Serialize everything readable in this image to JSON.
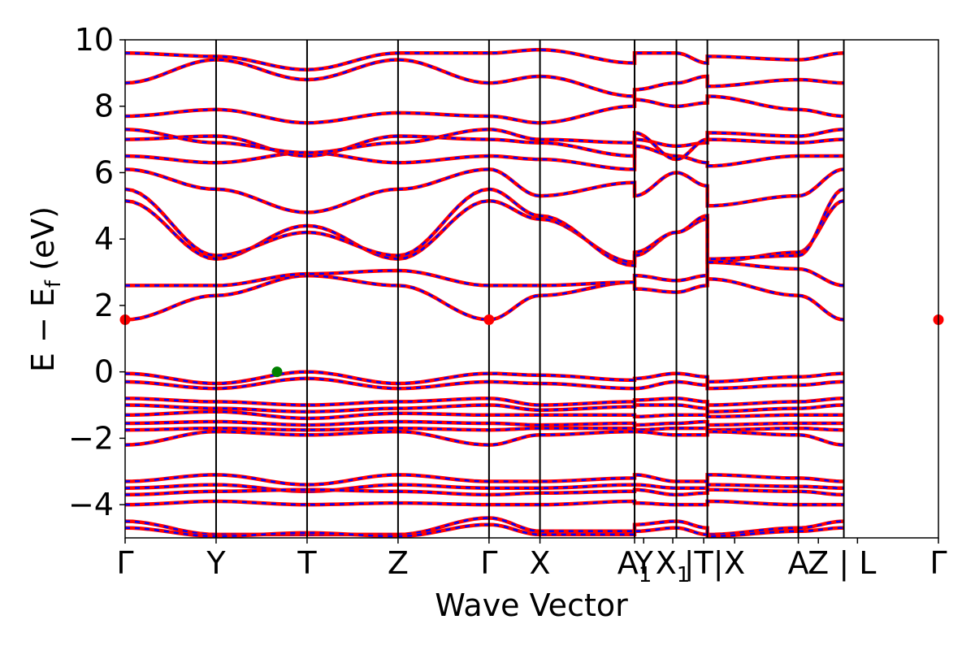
{
  "chart_data": {
    "type": "line",
    "title": "",
    "xlabel": "Wave Vector",
    "ylabel": "E − E",
    "ylabel_subscript": "f",
    "ylabel_unit": " (eV)",
    "ylim": [
      -5,
      10
    ],
    "yticks": [
      {
        "value": -4,
        "label": "−4"
      },
      {
        "value": -2,
        "label": "−2"
      },
      {
        "value": 0,
        "label": "0"
      },
      {
        "value": 2,
        "label": "2"
      },
      {
        "value": 4,
        "label": "4"
      },
      {
        "value": 6,
        "label": "6"
      },
      {
        "value": 8,
        "label": "8"
      },
      {
        "value": 10,
        "label": "10"
      }
    ],
    "x_path_length": 8.94,
    "kpoints": [
      {
        "label": "Γ",
        "x": 0
      },
      {
        "label": "Y",
        "x": 1.0
      },
      {
        "label": "T",
        "x": 2.0
      },
      {
        "label": "Z",
        "x": 3.0
      },
      {
        "label": "Γ",
        "x": 4.0
      },
      {
        "label": "X",
        "x": 4.56
      },
      {
        "label": "A",
        "x": 5.6,
        "sub": "1"
      },
      {
        "label": "Y",
        "x": 5.6
      },
      {
        "label": "X",
        "x": 6.06,
        "sub": "1"
      },
      {
        "label": "| T",
        "x": 6.4
      },
      {
        "label": "| X",
        "x": 6.4
      },
      {
        "label": "A",
        "x": 7.4
      },
      {
        "label": "Z | L",
        "x": 7.9
      },
      {
        "label": "Γ",
        "x": 8.94
      }
    ],
    "kpoint_display": [
      {
        "text": "Γ",
        "x": 0
      },
      {
        "text": "Y",
        "x": 1.0
      },
      {
        "text": "T",
        "x": 2.0
      },
      {
        "text": "Z",
        "x": 3.0
      },
      {
        "text": "Γ",
        "x": 4.0
      },
      {
        "text": "X",
        "x": 4.56
      },
      {
        "text": "A",
        "sub": "1",
        "x": 5.6
      },
      {
        "text": "Y",
        "x": 5.7
      },
      {
        "text": "X",
        "sub": "1",
        "x": 6.02
      },
      {
        "text": "|T|",
        "x": 6.36
      },
      {
        "text": "X",
        "x": 6.7
      },
      {
        "text": "A",
        "x": 7.4
      },
      {
        "text": "Z",
        "x": 7.62
      },
      {
        "text": "| L",
        "x": 8.05
      },
      {
        "text": "Γ",
        "x": 8.94
      }
    ],
    "band_colors": {
      "spin_up": "#ff0000",
      "spin_down": "#0000ff"
    },
    "cbm_points": [
      {
        "x": 0,
        "y": 1.57
      },
      {
        "x": 4.0,
        "y": 1.57
      },
      {
        "x": 8.94,
        "y": 1.57
      }
    ],
    "vbm_point": {
      "x": 1.67,
      "y": 0.0
    },
    "cbm_color": "#ff0000",
    "vbm_color": "#008000",
    "bands": [
      {
        "name": "c1",
        "y": [
          1.57,
          2.3,
          2.9,
          2.6,
          1.57,
          2.3,
          2.7,
          2.5,
          2.4,
          2.6,
          2.8,
          2.3,
          1.57
        ]
      },
      {
        "name": "c2",
        "y": [
          2.6,
          2.6,
          2.95,
          3.05,
          2.6,
          2.6,
          2.7,
          2.9,
          2.75,
          2.9,
          3.3,
          3.1,
          2.6
        ]
      },
      {
        "name": "c3",
        "y": [
          5.15,
          3.4,
          4.4,
          3.4,
          5.15,
          4.6,
          3.3,
          3.5,
          4.2,
          4.6,
          3.3,
          3.6,
          5.15
        ]
      },
      {
        "name": "c4",
        "y": [
          5.5,
          3.5,
          4.2,
          3.5,
          5.5,
          4.7,
          3.2,
          3.6,
          4.2,
          4.7,
          3.4,
          3.5,
          5.5
        ]
      },
      {
        "name": "c5",
        "y": [
          6.1,
          5.5,
          4.8,
          5.5,
          6.1,
          5.3,
          5.7,
          5.3,
          6.0,
          5.6,
          5.0,
          5.3,
          6.1
        ]
      },
      {
        "name": "c6",
        "y": [
          6.5,
          6.3,
          6.6,
          6.3,
          6.5,
          6.4,
          6.1,
          6.8,
          6.5,
          6.3,
          6.2,
          6.5,
          6.5
        ]
      },
      {
        "name": "c7",
        "y": [
          7.0,
          7.1,
          6.5,
          7.1,
          7.0,
          6.9,
          6.5,
          7.0,
          6.8,
          6.9,
          7.0,
          6.9,
          7.0
        ]
      },
      {
        "name": "c8",
        "y": [
          7.3,
          6.9,
          6.6,
          6.9,
          7.3,
          7.0,
          6.9,
          7.2,
          6.4,
          7.0,
          7.2,
          7.1,
          7.3
        ]
      },
      {
        "name": "c9",
        "y": [
          7.7,
          7.9,
          7.5,
          7.8,
          7.7,
          7.5,
          8.0,
          8.2,
          8.0,
          8.1,
          8.3,
          7.9,
          7.7
        ]
      },
      {
        "name": "c10",
        "y": [
          8.7,
          9.4,
          8.8,
          9.4,
          8.7,
          8.9,
          8.3,
          8.5,
          8.7,
          8.9,
          8.6,
          8.8,
          8.7
        ]
      },
      {
        "name": "c11",
        "y": [
          9.6,
          9.5,
          9.1,
          9.6,
          9.6,
          9.7,
          9.3,
          9.6,
          9.6,
          9.3,
          9.5,
          9.4,
          9.6
        ]
      },
      {
        "name": "v1",
        "y": [
          -0.05,
          -0.35,
          0.0,
          -0.35,
          -0.05,
          -0.1,
          -0.25,
          -0.2,
          -0.05,
          -0.15,
          -0.3,
          -0.15,
          -0.05
        ]
      },
      {
        "name": "v2",
        "y": [
          -0.3,
          -0.5,
          -0.2,
          -0.5,
          -0.3,
          -0.35,
          -0.5,
          -0.5,
          -0.3,
          -0.4,
          -0.5,
          -0.4,
          -0.3
        ]
      },
      {
        "name": "v3",
        "y": [
          -0.8,
          -0.9,
          -1.0,
          -0.9,
          -0.8,
          -1.0,
          -0.9,
          -0.85,
          -0.8,
          -0.9,
          -1.0,
          -0.9,
          -0.8
        ]
      },
      {
        "name": "v4",
        "y": [
          -1.0,
          -1.1,
          -1.2,
          -1.1,
          -1.0,
          -1.15,
          -1.05,
          -1.0,
          -1.0,
          -1.1,
          -1.2,
          -1.1,
          -1.0
        ]
      },
      {
        "name": "v5",
        "y": [
          -1.3,
          -1.2,
          -1.4,
          -1.25,
          -1.3,
          -1.3,
          -1.3,
          -1.35,
          -1.3,
          -1.3,
          -1.35,
          -1.3,
          -1.3
        ]
      },
      {
        "name": "v6",
        "y": [
          -1.55,
          -1.5,
          -1.6,
          -1.5,
          -1.55,
          -1.6,
          -1.55,
          -1.6,
          -1.55,
          -1.5,
          -1.6,
          -1.55,
          -1.55
        ]
      },
      {
        "name": "v7",
        "y": [
          -1.75,
          -1.7,
          -1.75,
          -1.7,
          -1.75,
          -1.7,
          -1.7,
          -1.75,
          -1.7,
          -1.7,
          -1.75,
          -1.7,
          -1.75
        ]
      },
      {
        "name": "v8",
        "y": [
          -2.2,
          -1.8,
          -1.9,
          -1.8,
          -2.2,
          -1.9,
          -1.8,
          -1.8,
          -1.9,
          -1.9,
          -1.8,
          -1.9,
          -2.2
        ]
      },
      {
        "name": "v9",
        "y": [
          -3.3,
          -3.1,
          -3.4,
          -3.1,
          -3.3,
          -3.3,
          -3.2,
          -3.1,
          -3.3,
          -3.3,
          -3.1,
          -3.2,
          -3.3
        ]
      },
      {
        "name": "v10",
        "y": [
          -3.5,
          -3.4,
          -3.6,
          -3.4,
          -3.5,
          -3.5,
          -3.4,
          -3.4,
          -3.5,
          -3.5,
          -3.4,
          -3.45,
          -3.5
        ]
      },
      {
        "name": "v11",
        "y": [
          -3.7,
          -3.6,
          -3.55,
          -3.6,
          -3.7,
          -3.65,
          -3.6,
          -3.55,
          -3.7,
          -3.65,
          -3.55,
          -3.6,
          -3.7
        ]
      },
      {
        "name": "v12",
        "y": [
          -4.0,
          -3.9,
          -4.0,
          -3.95,
          -4.0,
          -4.0,
          -3.9,
          -3.95,
          -4.0,
          -4.0,
          -3.9,
          -4.0,
          -4.0
        ]
      },
      {
        "name": "v13",
        "y": [
          -4.5,
          -4.9,
          -4.9,
          -4.9,
          -4.4,
          -4.8,
          -4.8,
          -4.6,
          -4.5,
          -4.7,
          -4.9,
          -4.7,
          -4.5
        ]
      },
      {
        "name": "v14",
        "y": [
          -4.7,
          -4.95,
          -4.85,
          -4.95,
          -4.6,
          -4.9,
          -4.9,
          -4.8,
          -4.7,
          -4.9,
          -4.95,
          -4.8,
          -4.7
        ]
      }
    ]
  }
}
